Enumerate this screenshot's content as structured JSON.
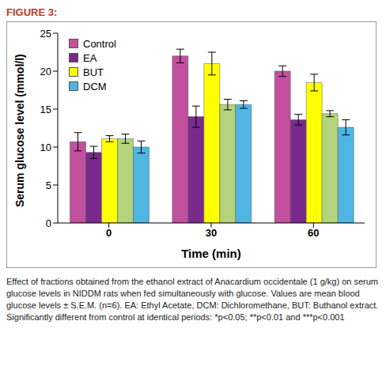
{
  "chart_data": {
    "type": "bar",
    "title": "FIGURE 3:",
    "x_label": "Time (min)",
    "y_label": "Serum glucose level (mmol/l)",
    "categories": [
      "0",
      "30",
      "60"
    ],
    "series": [
      {
        "name": "Control",
        "color": "#c2509e",
        "values": [
          10.7,
          22.0,
          20.0
        ],
        "errors": [
          1.2,
          0.9,
          0.7
        ]
      },
      {
        "name": "EA",
        "color": "#7a2a8c",
        "values": [
          9.3,
          14.0,
          13.6
        ],
        "errors": [
          0.8,
          1.4,
          0.7
        ]
      },
      {
        "name": "BUT",
        "color": "#ffff00",
        "values": [
          11.1,
          21.0,
          18.5
        ],
        "errors": [
          0.4,
          1.5,
          1.1
        ]
      },
      {
        "name": null,
        "color": "#b3d47c",
        "values": [
          11.1,
          15.6,
          14.4
        ],
        "errors": [
          0.6,
          0.7,
          0.4
        ]
      },
      {
        "name": "DCM",
        "color": "#4fb6e4",
        "values": [
          10.0,
          15.6,
          12.6
        ],
        "errors": [
          0.8,
          0.5,
          1.0
        ]
      }
    ],
    "ylim": [
      0,
      25
    ],
    "yticks": [
      0,
      5,
      10,
      15,
      20,
      25
    ],
    "grid": false,
    "legend": "upper left",
    "caption": "Effect of fractions obtained from the ethanol extract of Anacardium occidentale (1 g/kg) on serum glucose levels in NIDDM rats when fed simultaneously with glucose. Values are mean blood glucose levels ± S.E.M. (n=6). EA: Ethyl Acetate, DCM: Dichloromethane, BUT: Buthanol extract. Significantly different from control at identical periods: *p<0.05; **p<0.01 and ***p<0.001"
  }
}
